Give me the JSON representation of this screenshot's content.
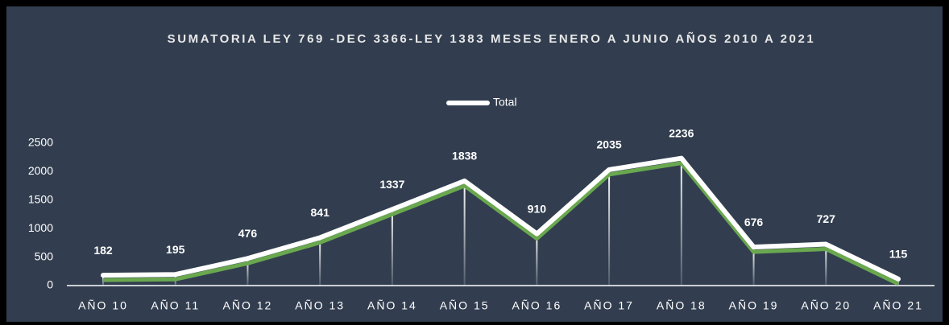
{
  "chart_data": {
    "type": "line",
    "title": "SUMATORIA LEY 769 -DEC 3366-LEY 1383 MESES ENERO A JUNIO AÑOS 2010 A 2021",
    "categories": [
      "AÑO 10",
      "AÑO 11",
      "AÑO 12",
      "AÑO 13",
      "AÑO 14",
      "AÑO 15",
      "AÑO 16",
      "AÑO 17",
      "AÑO 18",
      "AÑO 19",
      "AÑO 20",
      "AÑO 21"
    ],
    "series": [
      {
        "name": "Total",
        "color": "#ffffff",
        "shadow_color": "#6aa84f",
        "values": [
          182,
          195,
          476,
          841,
          1337,
          1838,
          910,
          2035,
          2236,
          676,
          727,
          115
        ]
      }
    ],
    "ylim": [
      0,
      2500
    ],
    "yticks": [
      0,
      500,
      1000,
      1500,
      2000,
      2500
    ],
    "legend": "top",
    "grid": false
  }
}
